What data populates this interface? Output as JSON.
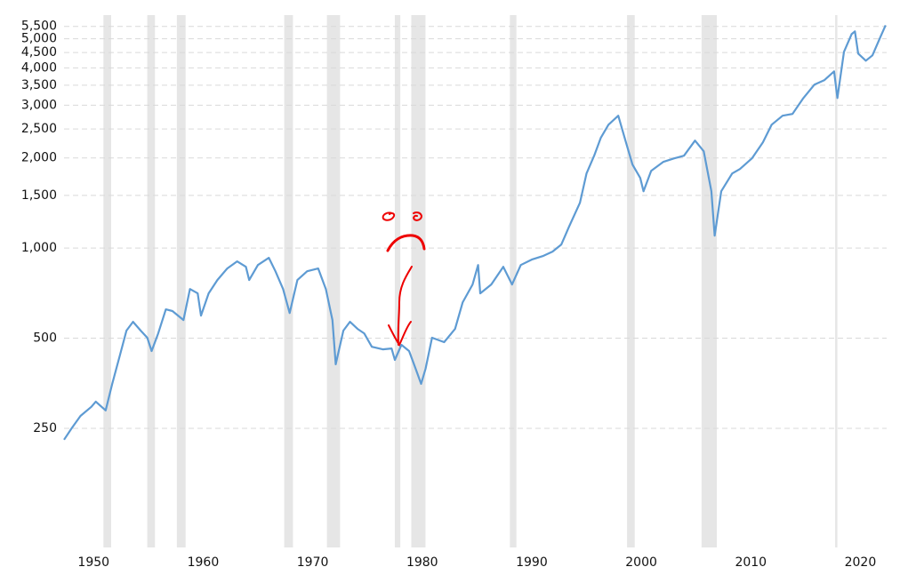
{
  "chart_data": {
    "type": "line",
    "x": [
      1947.3,
      1948.0,
      1948.8,
      1949.8,
      1950.2,
      1951.1,
      1951.7,
      1952.4,
      1953.0,
      1953.6,
      1954.3,
      1954.9,
      1955.3,
      1955.9,
      1956.6,
      1957.2,
      1958.2,
      1958.8,
      1959.5,
      1959.8,
      1960.5,
      1961.3,
      1962.2,
      1963.1,
      1963.9,
      1964.2,
      1965.0,
      1966.0,
      1966.6,
      1967.3,
      1967.9,
      1968.6,
      1969.5,
      1970.5,
      1971.2,
      1971.8,
      1972.1,
      1972.8,
      1973.4,
      1974.1,
      1974.7,
      1975.4,
      1976.4,
      1977.2,
      1977.5,
      1978.1,
      1978.8,
      1979.4,
      1979.9,
      1980.3,
      1980.9,
      1982.0,
      1983.0,
      1983.7,
      1984.6,
      1985.1,
      1985.3,
      1986.3,
      1987.4,
      1988.2,
      1989.0,
      1990.0,
      1991.0,
      1991.9,
      1992.7,
      1993.4,
      1994.4,
      1995.0,
      1995.7,
      1996.3,
      1997.0,
      1997.9,
      1998.6,
      1999.2,
      1999.9,
      2000.2,
      2000.9,
      2002.0,
      2003.0,
      2003.9,
      2004.9,
      2005.7,
      2006.4,
      2006.7,
      2007.3,
      2008.3,
      2009.0,
      2010.1,
      2011.1,
      2011.9,
      2012.9,
      2013.8,
      2014.8,
      2015.8,
      2016.7,
      2017.6,
      2017.9,
      2018.5,
      2019.2,
      2019.5,
      2019.8,
      2020.5,
      2021.1,
      2021.8,
      2022.3
    ],
    "values": [
      229,
      250,
      275,
      295,
      307,
      287,
      352,
      438,
      530,
      567,
      530,
      502,
      453,
      519,
      624,
      616,
      575,
      730,
      706,
      595,
      706,
      782,
      855,
      903,
      866,
      782,
      878,
      928,
      837,
      730,
      607,
      782,
      837,
      855,
      730,
      575,
      409,
      530,
      567,
      537,
      519,
      468,
      459,
      462,
      423,
      475,
      453,
      395,
      352,
      395,
      502,
      485,
      537,
      659,
      756,
      878,
      706,
      756,
      866,
      756,
      878,
      915,
      940,
      973,
      1028,
      1178,
      1416,
      1775,
      2035,
      2333,
      2583,
      2767,
      2253,
      1900,
      1715,
      1548,
      1811,
      1940,
      1993,
      2035,
      2285,
      2105,
      1548,
      1100,
      1548,
      1775,
      1837,
      1993,
      2253,
      2583,
      2767,
      2805,
      3171,
      3514,
      3636,
      3893,
      3171,
      4523,
      5185,
      5293,
      4463,
      4225,
      4401,
      5045,
      5551
    ],
    "color": "#5e9bd3",
    "shaded_periods": [
      [
        1950.9,
        1951.6
      ],
      [
        1954.9,
        1955.6
      ],
      [
        1957.6,
        1958.4
      ],
      [
        1967.4,
        1968.2
      ],
      [
        1971.3,
        1972.5
      ],
      [
        1977.5,
        1978.0
      ],
      [
        1979.0,
        1980.3
      ],
      [
        1988.0,
        1988.6
      ],
      [
        1998.7,
        1999.4
      ],
      [
        2005.5,
        2006.9
      ],
      [
        2017.7,
        2017.9
      ]
    ],
    "shade_color": "#e6e6e6",
    "xlim": [
      1947.3,
      2022.4
    ],
    "xticks": [
      1950,
      1960,
      1970,
      1980,
      1990,
      2000,
      2010,
      2020
    ],
    "ylim": [
      100,
      6000
    ],
    "log_scale": true,
    "grid": true,
    "yticks": [
      250,
      500,
      {
        "value": 1000,
        "label": "1,000"
      },
      {
        "value": 1500,
        "label": "1,500"
      },
      {
        "value": 2000,
        "label": "2,000"
      },
      {
        "value": 2500,
        "label": "2,500"
      },
      {
        "value": 3000,
        "label": "3,000"
      },
      {
        "value": 3500,
        "label": "3,500"
      },
      {
        "value": 4000,
        "label": "4,000"
      },
      {
        "value": 4500,
        "label": "4,500"
      },
      {
        "value": 5000,
        "label": "5,000"
      },
      {
        "value": 5500,
        "label": "5,500"
      }
    ]
  }
}
